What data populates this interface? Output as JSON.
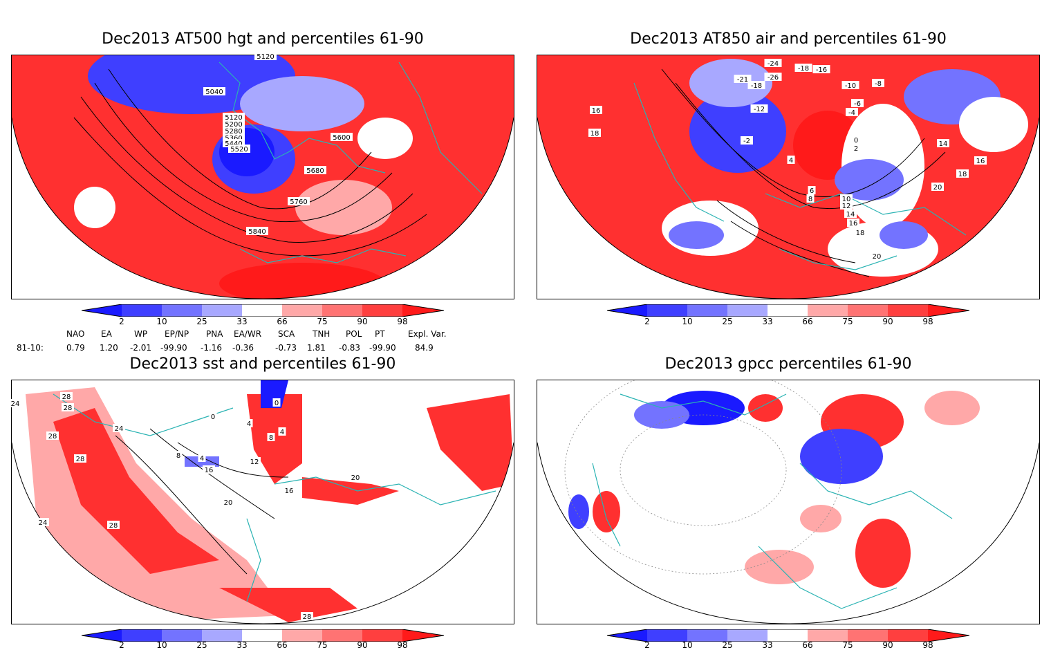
{
  "panels": [
    {
      "id": "at500",
      "title": "Dec2013 AT500 hgt and percentiles 61-90",
      "contour_labels": [
        "5120",
        "5040",
        "5120",
        "5200",
        "5280",
        "5360",
        "5440",
        "5520",
        "5600",
        "5680",
        "5760",
        "5840"
      ]
    },
    {
      "id": "at850",
      "title": "Dec2013 AT850 air and percentiles 61-90",
      "contour_labels": [
        "-24",
        "-18",
        "-16",
        "-21",
        "-18",
        "-26",
        "-12",
        "-10",
        "-8",
        "-6",
        "-4",
        "-2",
        "0",
        "2",
        "4",
        "6",
        "8",
        "10",
        "12",
        "14",
        "16",
        "18",
        "20",
        "16",
        "18",
        "16",
        "14",
        "18",
        "20"
      ]
    },
    {
      "id": "sst",
      "title": "Dec2013 sst and percentiles 61-90",
      "contour_labels": [
        "24",
        "28",
        "28",
        "24",
        "28",
        "28",
        "4",
        "8",
        "12",
        "16",
        "20",
        "16",
        "20",
        "24",
        "28",
        "28",
        "0",
        "0",
        "4",
        "4",
        "8"
      ]
    },
    {
      "id": "gpcc",
      "title": "Dec2013 gpcc percentiles 61-90",
      "contour_labels": []
    }
  ],
  "colorbar": {
    "labels": [
      "2",
      "10",
      "25",
      "33",
      "66",
      "75",
      "90",
      "98"
    ],
    "colors": [
      "#1a1aff",
      "#3f3fff",
      "#7373ff",
      "#a8a8ff",
      "#ffffff",
      "#ffa8a8",
      "#ff7373",
      "#ff3f3f",
      "#ff1a1a"
    ]
  },
  "indices": {
    "headers": [
      "NAO",
      "EA",
      "WP",
      "EP/NP",
      "PNA",
      "EA/WR",
      "SCA",
      "TNH",
      "POL",
      "PT",
      "Expl. Var."
    ],
    "row_label": "81-10:",
    "values": [
      "0.79",
      "1.20",
      "-2.01",
      "-99.90",
      "-1.16",
      "-0.36",
      "-0.73",
      "1.81",
      "-0.83",
      "-99.90",
      "84.9"
    ]
  },
  "colors": {
    "coast": "#2ab3b3",
    "contour": "#000000",
    "red": "#ff2a2a",
    "pink": "#ffa0a0",
    "blue": "#3f3fff",
    "lightblue": "#a8a8ff"
  }
}
